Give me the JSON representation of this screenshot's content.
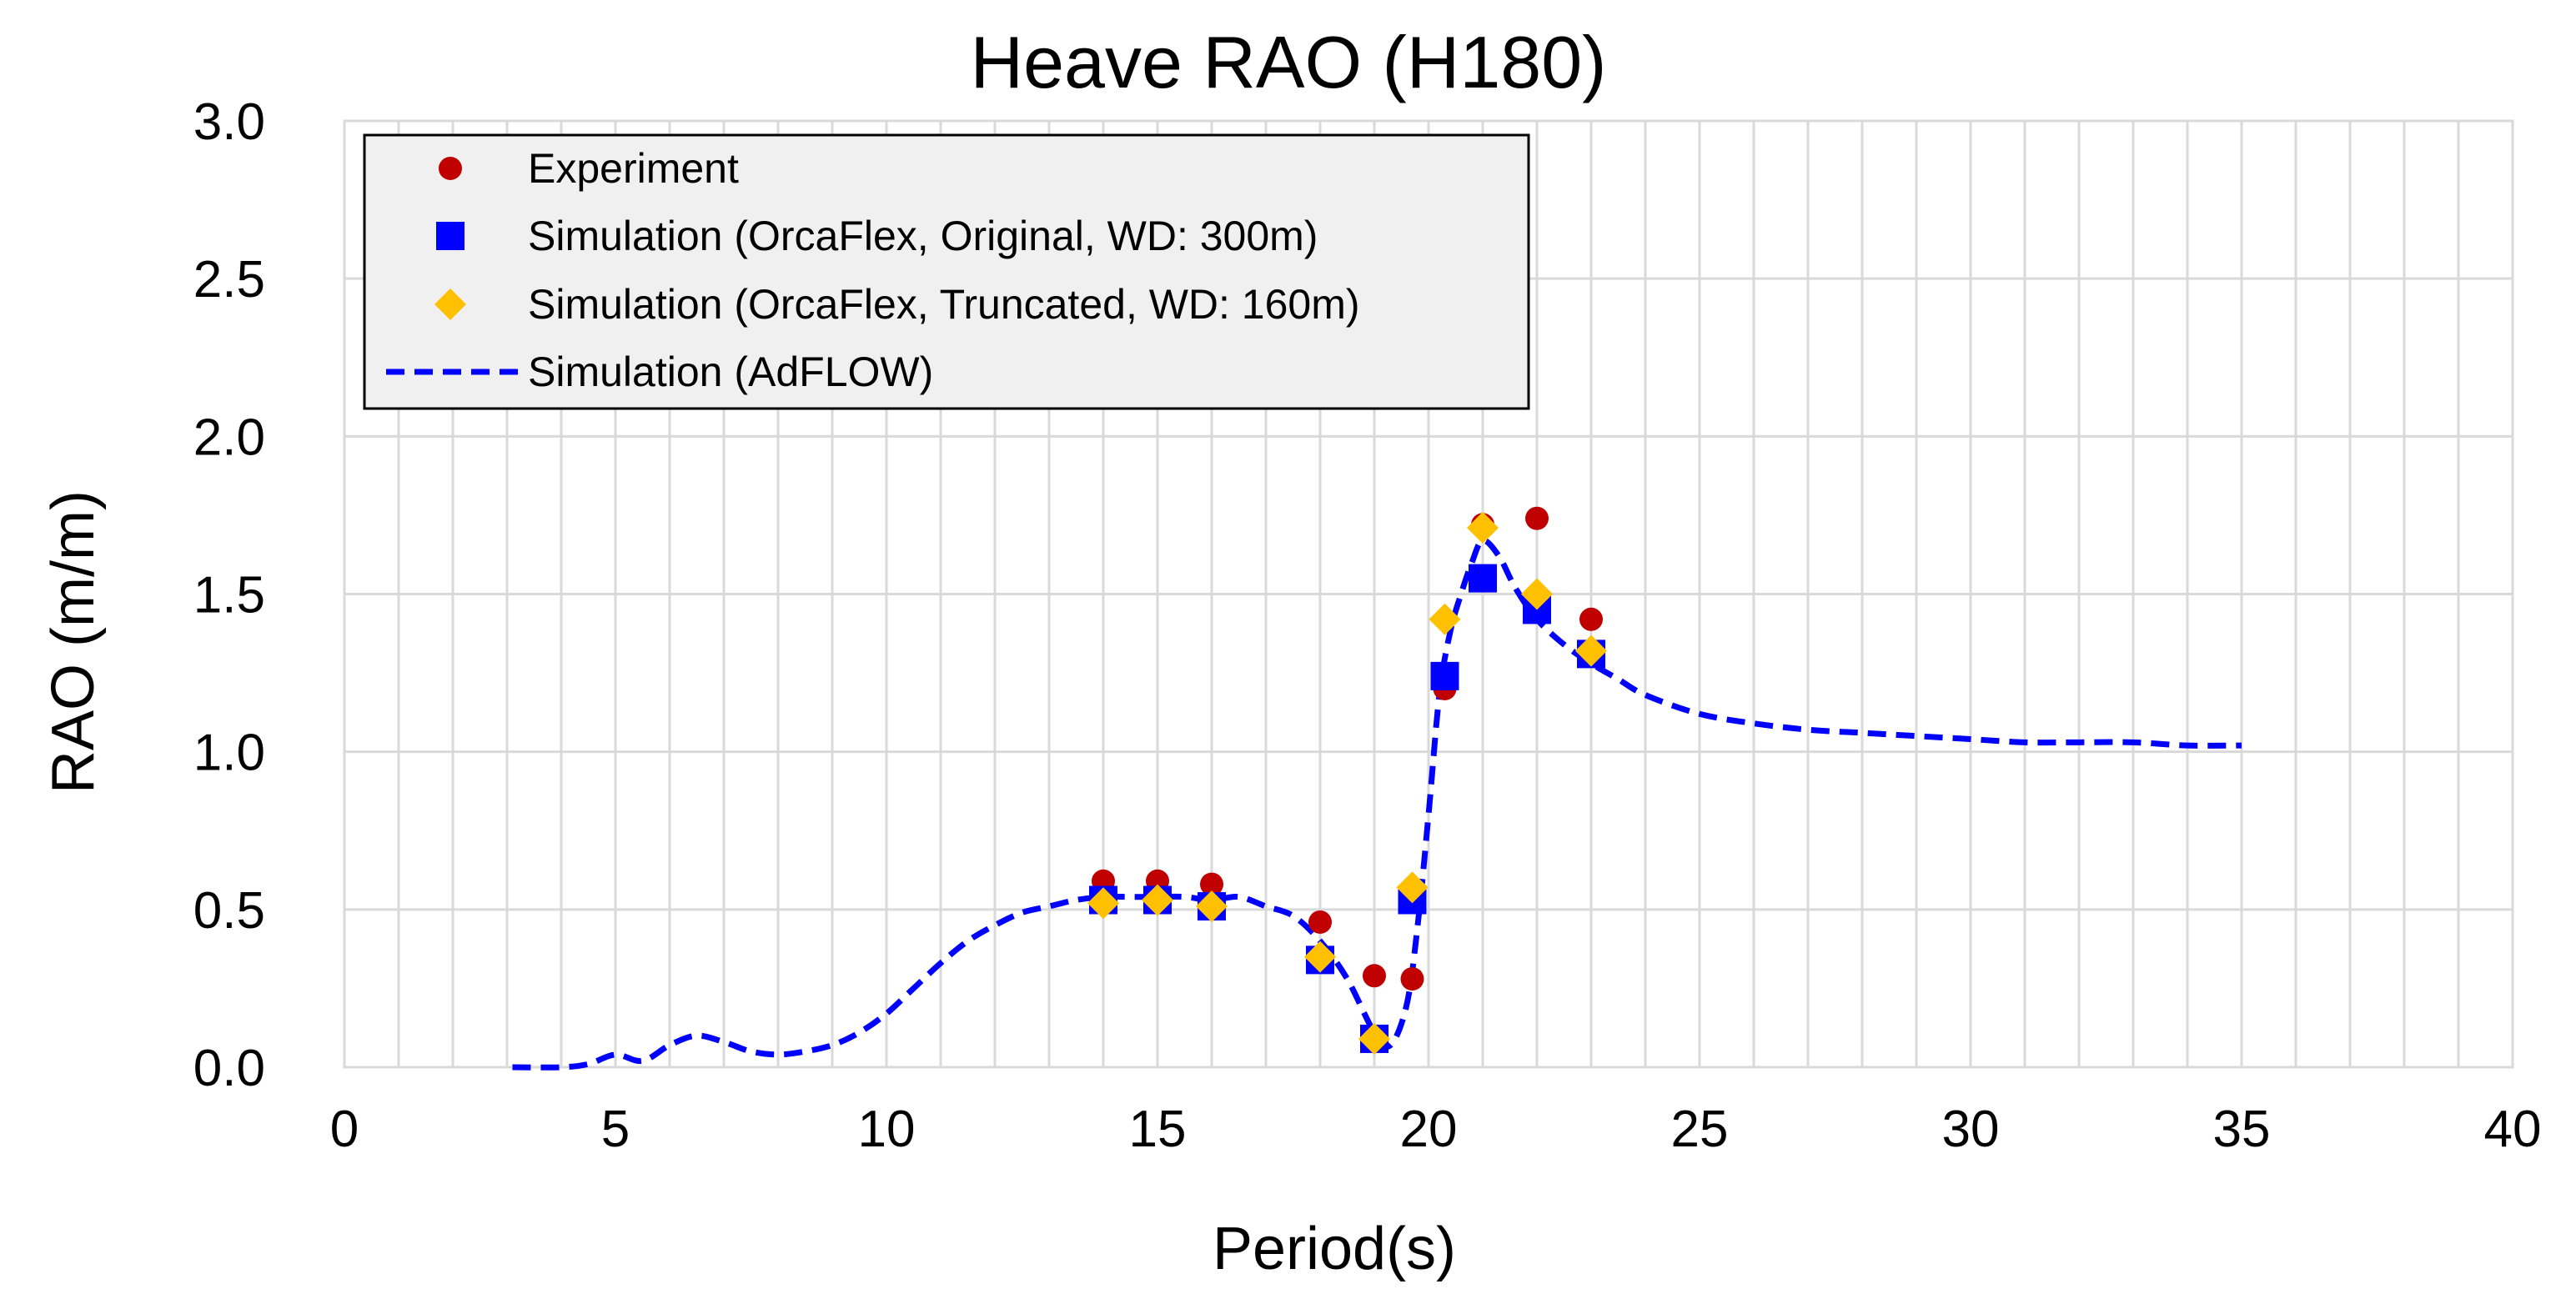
{
  "chart_data": {
    "type": "scatter",
    "title": "Heave RAO (H180)",
    "xlabel": "Period(s)",
    "ylabel": "RAO (m/m)",
    "xlim": [
      0,
      40
    ],
    "ylim": [
      0,
      3.0
    ],
    "x_ticks": [
      0,
      5,
      10,
      15,
      20,
      25,
      30,
      35,
      40
    ],
    "x_tick_labels": [
      "0",
      "5",
      "10",
      "15",
      "20",
      "25",
      "30",
      "35",
      "40"
    ],
    "y_ticks": [
      0,
      0.5,
      1.0,
      1.5,
      2.0,
      2.5,
      3.0
    ],
    "y_tick_labels": [
      "0.0",
      "0.5",
      "1.0",
      "1.5",
      "2.0",
      "2.5",
      "3.0"
    ],
    "x_minor_step": 1,
    "grid": true,
    "legend_position": "top-left",
    "series": [
      {
        "name": "Experiment",
        "marker": "circle",
        "color": "#c00000",
        "x": [
          14,
          15,
          16,
          18,
          19,
          19.7,
          20.3,
          21,
          22,
          23
        ],
        "y": [
          0.59,
          0.59,
          0.58,
          0.46,
          0.29,
          0.28,
          1.2,
          1.72,
          1.74,
          1.42
        ]
      },
      {
        "name": "Simulation (OrcaFlex, Original, WD: 300m)",
        "marker": "square",
        "color": "#0000ff",
        "x": [
          14,
          15,
          16,
          18,
          19,
          19.7,
          20.3,
          21,
          22,
          23
        ],
        "y": [
          0.53,
          0.53,
          0.51,
          0.34,
          0.09,
          0.53,
          1.24,
          1.55,
          1.45,
          1.31
        ]
      },
      {
        "name": "Simulation (OrcaFlex, Truncated, WD: 160m)",
        "marker": "diamond",
        "color": "#ffc000",
        "x": [
          14,
          15,
          16,
          18,
          19,
          19.7,
          20.3,
          21,
          22,
          23
        ],
        "y": [
          0.52,
          0.53,
          0.51,
          0.35,
          0.09,
          0.57,
          1.42,
          1.71,
          1.5,
          1.32
        ]
      },
      {
        "name": "Simulation (AdFLOW)",
        "marker": "dashed-line",
        "color": "#0000ff",
        "x": [
          3.1,
          4,
          4.5,
          5,
          5.5,
          6,
          6.5,
          7,
          7.5,
          8,
          8.5,
          9,
          9.5,
          10,
          10.5,
          11,
          11.5,
          12,
          12.5,
          13,
          13.5,
          14,
          14.5,
          15,
          15.5,
          16,
          16.5,
          17,
          17.5,
          18,
          18.5,
          19,
          19.3,
          19.6,
          19.8,
          20,
          20.2,
          20.4,
          20.6,
          20.8,
          21,
          21.3,
          21.6,
          22,
          22.5,
          23,
          23.5,
          24,
          25,
          26,
          27,
          28,
          29,
          30,
          31,
          32,
          33,
          34,
          35
        ],
        "y": [
          0.0,
          0.0,
          0.01,
          0.04,
          0.02,
          0.07,
          0.1,
          0.08,
          0.05,
          0.04,
          0.05,
          0.07,
          0.11,
          0.17,
          0.25,
          0.33,
          0.4,
          0.45,
          0.49,
          0.51,
          0.53,
          0.54,
          0.54,
          0.54,
          0.54,
          0.53,
          0.54,
          0.51,
          0.48,
          0.4,
          0.28,
          0.11,
          0.07,
          0.2,
          0.45,
          0.8,
          1.18,
          1.38,
          1.5,
          1.6,
          1.67,
          1.62,
          1.52,
          1.42,
          1.34,
          1.28,
          1.23,
          1.18,
          1.12,
          1.09,
          1.07,
          1.06,
          1.05,
          1.04,
          1.03,
          1.03,
          1.03,
          1.02,
          1.02
        ]
      }
    ]
  }
}
